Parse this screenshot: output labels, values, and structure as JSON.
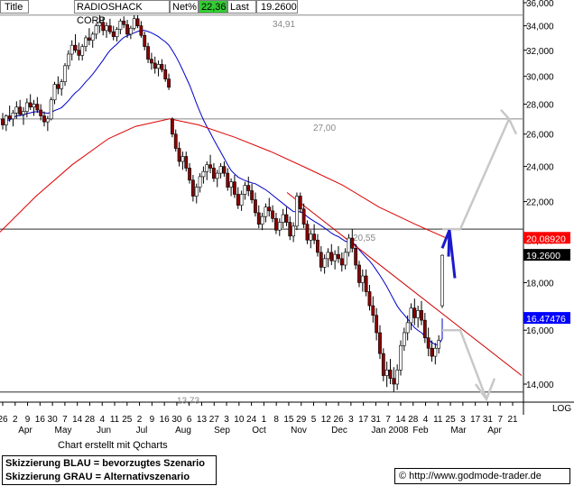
{
  "header": {
    "title_tab": "Title",
    "symbol": "RADIOSHACK CORP",
    "netpct_label": "Net%",
    "netpct_value": "22,36",
    "last_label": "Last",
    "last_value": "19.2600"
  },
  "footer": {
    "credit": "Chart erstellt mit Qcharts",
    "legend_blue": "Skizzierung BLAU = bevorzugtes Szenario",
    "legend_grey": "Skizzierung GRAU = Alternativszenario",
    "url": "http://www.godmode-trader.de",
    "log_label": "LOG"
  },
  "colors": {
    "candle_up": "#ffffff",
    "candle_down": "#8b0000",
    "ma_short": "#0000cc",
    "ma_long": "#dd0000",
    "scenario_blue": "#1a1acc",
    "scenario_grey": "#c8c8c8",
    "price_tag_red": "#ff0000",
    "price_tag_black": "#000000",
    "price_tag_blue": "#0000ff",
    "net_green": "#33cc33"
  },
  "chart_data": {
    "type": "candlestick",
    "scale": "log",
    "ylim": [
      13.0,
      36.0
    ],
    "yticks": [
      "14,000",
      "16,000",
      "18,000",
      "20,000",
      "22,000",
      "24,000",
      "26,000",
      "28,000",
      "30,000",
      "32,000",
      "34,000",
      "36,000"
    ],
    "ytick_values": [
      14,
      16,
      18,
      20,
      22,
      24,
      26,
      28,
      30,
      32,
      34,
      36
    ],
    "date_labels": [
      "26",
      "2",
      "9",
      "16",
      "30",
      "7",
      "14",
      "28",
      "4",
      "11",
      "25",
      "2",
      "9",
      "16",
      "30",
      "6",
      "13",
      "27",
      "3",
      "10",
      "24",
      "1",
      "8",
      "15",
      "29",
      "5",
      "12",
      "26",
      "3",
      "17",
      "31",
      "7",
      "14",
      "28",
      "4",
      "11",
      "25",
      "3",
      "17",
      "31",
      "7",
      "21"
    ],
    "month_labels": [
      "Apr",
      "May",
      "Jun",
      "Jul",
      "Aug",
      "Sep",
      "Oct",
      "Nov",
      "Dec",
      "Jan 2008",
      "Feb",
      "Mar",
      "Apr"
    ],
    "horizontal_levels": [
      {
        "value": 34.91,
        "label": "34,91"
      },
      {
        "value": 27.0,
        "label": "27,00"
      },
      {
        "value": 20.55,
        "label": "20,55"
      },
      {
        "value": 13.73,
        "label": "13,73"
      }
    ],
    "price_tags": [
      {
        "value": 20.0892,
        "label": "20.08920",
        "series": "ma_long"
      },
      {
        "value": 19.26,
        "label": "19.2600",
        "series": "last"
      },
      {
        "value": 16.4748,
        "label": "16.47476",
        "series": "ma_short"
      }
    ],
    "candles": [
      [
        27.0,
        27.4,
        26.3,
        26.6
      ],
      [
        26.6,
        27.3,
        26.2,
        27.2
      ],
      [
        27.2,
        27.9,
        26.8,
        27.0
      ],
      [
        27.0,
        27.6,
        26.5,
        27.4
      ],
      [
        27.4,
        28.2,
        27.0,
        27.8
      ],
      [
        27.8,
        28.3,
        27.2,
        27.3
      ],
      [
        27.3,
        27.8,
        26.6,
        27.5
      ],
      [
        27.5,
        28.4,
        27.1,
        28.1
      ],
      [
        28.1,
        28.7,
        27.6,
        27.8
      ],
      [
        27.8,
        28.3,
        27.2,
        28.0
      ],
      [
        28.0,
        28.5,
        27.4,
        27.6
      ],
      [
        27.6,
        28.0,
        26.9,
        27.2
      ],
      [
        27.2,
        27.5,
        26.5,
        26.8
      ],
      [
        26.8,
        27.2,
        26.2,
        27.0
      ],
      [
        27.0,
        28.5,
        26.9,
        28.3
      ],
      [
        28.3,
        29.6,
        28.0,
        29.4
      ],
      [
        29.4,
        30.0,
        28.7,
        29.1
      ],
      [
        29.1,
        29.8,
        28.6,
        29.6
      ],
      [
        29.6,
        31.0,
        29.3,
        30.8
      ],
      [
        30.8,
        32.0,
        30.5,
        31.7
      ],
      [
        31.7,
        32.8,
        31.2,
        32.4
      ],
      [
        32.4,
        33.3,
        31.8,
        32.0
      ],
      [
        32.0,
        32.6,
        31.2,
        31.6
      ],
      [
        31.6,
        32.5,
        31.2,
        32.3
      ],
      [
        32.3,
        33.2,
        31.9,
        33.0
      ],
      [
        33.0,
        33.8,
        32.4,
        32.8
      ],
      [
        32.8,
        33.5,
        32.2,
        33.3
      ],
      [
        33.3,
        34.2,
        32.9,
        34.0
      ],
      [
        34.0,
        34.91,
        33.4,
        34.3
      ],
      [
        34.3,
        34.7,
        33.2,
        33.6
      ],
      [
        33.6,
        34.3,
        33.0,
        34.0
      ],
      [
        34.0,
        34.6,
        33.3,
        33.5
      ],
      [
        33.5,
        34.0,
        32.8,
        33.1
      ],
      [
        33.1,
        33.9,
        32.7,
        33.7
      ],
      [
        33.7,
        34.6,
        33.3,
        34.4
      ],
      [
        34.4,
        34.8,
        33.8,
        34.1
      ],
      [
        34.1,
        34.5,
        33.0,
        33.3
      ],
      [
        33.3,
        34.0,
        32.9,
        33.8
      ],
      [
        33.8,
        34.9,
        33.6,
        34.6
      ],
      [
        34.6,
        34.9,
        33.8,
        34.0
      ],
      [
        34.0,
        34.4,
        33.0,
        33.2
      ],
      [
        33.2,
        33.5,
        32.0,
        32.3
      ],
      [
        32.3,
        32.6,
        31.0,
        31.3
      ],
      [
        31.3,
        31.8,
        30.5,
        31.0
      ],
      [
        31.0,
        31.5,
        30.2,
        30.6
      ],
      [
        30.6,
        31.2,
        30.0,
        30.9
      ],
      [
        30.9,
        31.3,
        30.3,
        30.5
      ],
      [
        30.5,
        30.9,
        29.6,
        29.8
      ],
      [
        29.8,
        30.2,
        29.0,
        29.2
      ],
      [
        27.0,
        27.1,
        25.8,
        26.0
      ],
      [
        26.0,
        26.3,
        24.9,
        25.1
      ],
      [
        25.1,
        25.5,
        24.0,
        24.3
      ],
      [
        24.3,
        24.9,
        23.8,
        24.6
      ],
      [
        24.6,
        24.9,
        23.7,
        23.9
      ],
      [
        23.9,
        24.2,
        23.0,
        23.2
      ],
      [
        23.2,
        23.5,
        22.0,
        22.3
      ],
      [
        22.3,
        23.0,
        21.9,
        22.8
      ],
      [
        22.8,
        23.6,
        22.5,
        23.4
      ],
      [
        23.4,
        24.0,
        23.0,
        23.7
      ],
      [
        23.7,
        24.3,
        23.2,
        24.1
      ],
      [
        24.1,
        24.7,
        23.6,
        23.9
      ],
      [
        23.9,
        24.2,
        23.1,
        23.3
      ],
      [
        23.3,
        23.8,
        22.8,
        23.6
      ],
      [
        23.6,
        24.2,
        23.3,
        24.0
      ],
      [
        24.0,
        24.3,
        23.4,
        23.6
      ],
      [
        23.6,
        23.9,
        22.6,
        22.8
      ],
      [
        22.8,
        23.3,
        22.3,
        23.1
      ],
      [
        23.1,
        23.5,
        22.2,
        22.4
      ],
      [
        22.4,
        22.8,
        21.6,
        21.8
      ],
      [
        21.8,
        22.6,
        21.5,
        22.4
      ],
      [
        22.4,
        23.1,
        22.1,
        22.9
      ],
      [
        22.9,
        23.4,
        22.3,
        22.6
      ],
      [
        22.6,
        23.0,
        21.9,
        22.1
      ],
      [
        22.1,
        22.5,
        21.2,
        21.4
      ],
      [
        21.4,
        21.8,
        20.6,
        20.8
      ],
      [
        20.8,
        21.4,
        20.5,
        21.2
      ],
      [
        21.2,
        21.9,
        20.9,
        21.7
      ],
      [
        21.7,
        22.2,
        21.2,
        21.5
      ],
      [
        21.5,
        21.8,
        20.9,
        21.1
      ],
      [
        21.1,
        21.4,
        20.3,
        20.5
      ],
      [
        20.5,
        21.1,
        20.2,
        20.9
      ],
      [
        20.9,
        21.6,
        20.6,
        21.3
      ],
      [
        21.3,
        21.7,
        20.7,
        20.9
      ],
      [
        20.9,
        21.2,
        20.0,
        20.2
      ],
      [
        20.2,
        20.9,
        19.9,
        20.7
      ],
      [
        20.7,
        22.5,
        20.5,
        22.3
      ],
      [
        22.3,
        22.5,
        21.4,
        21.6
      ],
      [
        21.6,
        21.9,
        20.6,
        20.8
      ],
      [
        20.8,
        21.0,
        19.8,
        20.0
      ],
      [
        20.0,
        20.5,
        19.6,
        20.3
      ],
      [
        20.3,
        20.8,
        19.8,
        20.0
      ],
      [
        20.0,
        20.3,
        19.2,
        19.4
      ],
      [
        19.4,
        19.7,
        18.5,
        18.7
      ],
      [
        18.7,
        19.3,
        18.4,
        19.1
      ],
      [
        19.1,
        19.6,
        18.7,
        19.4
      ],
      [
        19.4,
        19.8,
        18.8,
        19.0
      ],
      [
        19.0,
        19.5,
        18.6,
        19.3
      ],
      [
        19.3,
        19.7,
        18.9,
        19.1
      ],
      [
        19.1,
        19.4,
        18.5,
        18.8
      ],
      [
        18.8,
        19.6,
        18.6,
        19.4
      ],
      [
        19.4,
        20.3,
        19.2,
        20.1
      ],
      [
        20.1,
        20.55,
        19.4,
        19.6
      ],
      [
        19.6,
        19.8,
        18.6,
        18.8
      ],
      [
        18.8,
        19.0,
        17.8,
        18.0
      ],
      [
        18.0,
        18.6,
        17.6,
        18.3
      ],
      [
        18.3,
        18.6,
        17.4,
        17.6
      ],
      [
        17.6,
        17.9,
        16.8,
        17.0
      ],
      [
        17.0,
        17.4,
        16.3,
        16.6
      ],
      [
        16.6,
        16.9,
        15.6,
        15.9
      ],
      [
        15.9,
        16.2,
        14.9,
        15.1
      ],
      [
        15.1,
        15.3,
        14.1,
        14.3
      ],
      [
        14.3,
        14.8,
        13.9,
        14.5
      ],
      [
        14.5,
        14.9,
        14.0,
        14.2
      ],
      [
        14.2,
        14.6,
        13.73,
        14.0
      ],
      [
        14.0,
        14.7,
        13.8,
        14.5
      ],
      [
        14.5,
        15.6,
        14.3,
        15.4
      ],
      [
        15.4,
        16.1,
        15.2,
        15.9
      ],
      [
        15.9,
        16.6,
        15.6,
        16.3
      ],
      [
        16.3,
        17.1,
        16.0,
        16.9
      ],
      [
        16.9,
        17.3,
        16.2,
        16.5
      ],
      [
        16.5,
        17.0,
        16.1,
        16.8
      ],
      [
        16.8,
        17.2,
        16.2,
        16.4
      ],
      [
        16.4,
        16.7,
        15.5,
        15.7
      ],
      [
        15.7,
        16.1,
        15.0,
        15.3
      ],
      [
        15.3,
        15.6,
        14.8,
        15.0
      ],
      [
        15.0,
        15.5,
        14.7,
        15.3
      ],
      [
        15.3,
        15.8,
        15.1,
        15.6
      ],
      [
        17.0,
        19.3,
        16.9,
        19.26
      ]
    ]
  }
}
